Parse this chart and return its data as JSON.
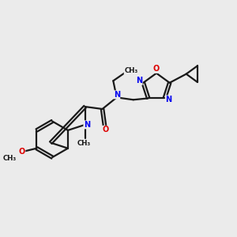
{
  "bg_color": "#ebebeb",
  "bond_color": "#1a1a1a",
  "N_color": "#0000ee",
  "O_color": "#dd0000",
  "line_width": 1.6,
  "fig_size": [
    3.0,
    3.0
  ],
  "dpi": 100,
  "xlim": [
    0,
    10
  ],
  "ylim": [
    0,
    10
  ]
}
